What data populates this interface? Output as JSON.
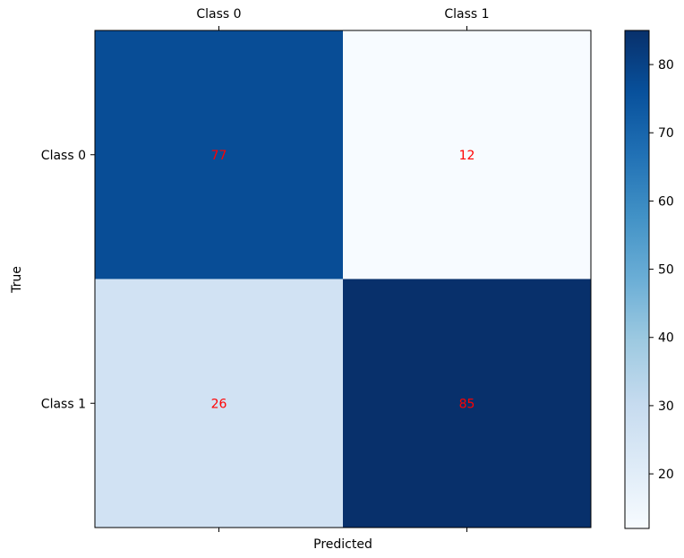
{
  "chart_data": {
    "type": "heatmap",
    "title": "",
    "xlabel": "Predicted",
    "ylabel": "True",
    "x_categories": [
      "Class 0",
      "Class 1"
    ],
    "y_categories": [
      "Class 0",
      "Class 1"
    ],
    "values": [
      [
        77,
        12
      ],
      [
        26,
        85
      ]
    ],
    "value_label_color": "#ff0000",
    "colormap": "Blues",
    "colorbar": {
      "min": 12,
      "max": 85,
      "ticks": [
        20,
        30,
        40,
        50,
        60,
        70,
        80
      ],
      "tick_labels": [
        "20",
        "30",
        "40",
        "50",
        "60",
        "70",
        "80"
      ]
    },
    "x_tick_position": "top",
    "grid": false
  }
}
